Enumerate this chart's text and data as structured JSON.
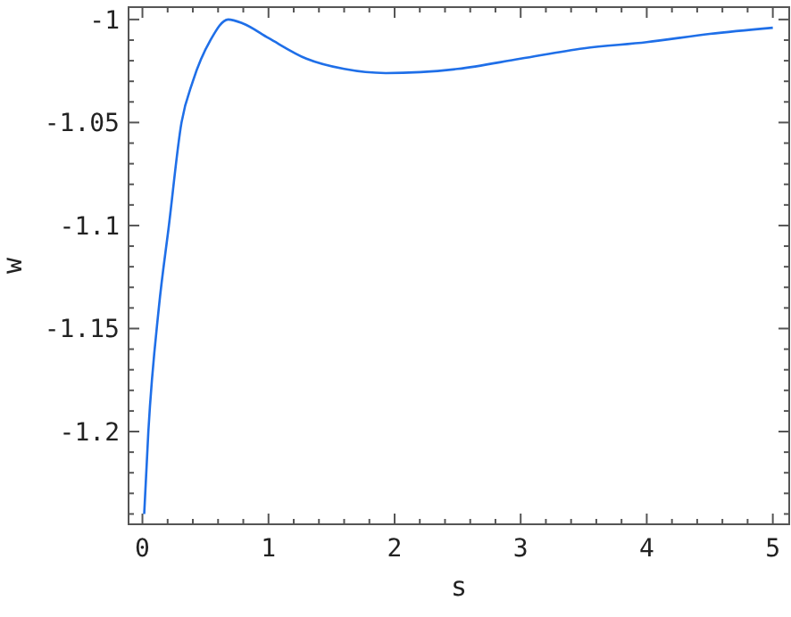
{
  "chart_data": {
    "type": "line",
    "xlabel": "s",
    "ylabel": "w",
    "xlim": [
      -0.11,
      5.13
    ],
    "ylim": [
      -1.245,
      -0.994
    ],
    "xticks": [
      0,
      {
        "value": 0.2,
        "label": null
      },
      {
        "value": 0.4,
        "label": null
      },
      {
        "value": 0.6,
        "label": null
      },
      {
        "value": 0.8,
        "label": null
      },
      1,
      {
        "value": 1.2,
        "label": null
      },
      {
        "value": 1.4,
        "label": null
      },
      {
        "value": 1.6,
        "label": null
      },
      {
        "value": 1.8,
        "label": null
      },
      2,
      {
        "value": 2.2,
        "label": null
      },
      {
        "value": 2.4,
        "label": null
      },
      {
        "value": 2.6,
        "label": null
      },
      {
        "value": 2.8,
        "label": null
      },
      3,
      {
        "value": 3.2,
        "label": null
      },
      {
        "value": 3.4,
        "label": null
      },
      {
        "value": 3.6,
        "label": null
      },
      {
        "value": 3.8,
        "label": null
      },
      4,
      {
        "value": 4.2,
        "label": null
      },
      {
        "value": 4.4,
        "label": null
      },
      {
        "value": 4.6,
        "label": null
      },
      {
        "value": 4.8,
        "label": null
      },
      5
    ],
    "yticks": [
      {
        "value": -1.24,
        "label": null
      },
      {
        "value": -1.23,
        "label": null
      },
      {
        "value": -1.22,
        "label": null
      },
      {
        "value": -1.21,
        "label": null
      },
      -1.2,
      {
        "value": -1.19,
        "label": null
      },
      {
        "value": -1.18,
        "label": null
      },
      {
        "value": -1.17,
        "label": null
      },
      {
        "value": -1.16,
        "label": null
      },
      -1.15,
      {
        "value": -1.14,
        "label": null
      },
      {
        "value": -1.13,
        "label": null
      },
      {
        "value": -1.12,
        "label": null
      },
      {
        "value": -1.11,
        "label": null
      },
      -1.1,
      {
        "value": -1.09,
        "label": null
      },
      {
        "value": -1.08,
        "label": null
      },
      {
        "value": -1.07,
        "label": null
      },
      {
        "value": -1.06,
        "label": null
      },
      -1.05,
      {
        "value": -1.04,
        "label": null
      },
      {
        "value": -1.03,
        "label": null
      },
      {
        "value": -1.02,
        "label": null
      },
      {
        "value": -1.01,
        "label": null
      },
      -1
    ],
    "grid": false,
    "marker": "none",
    "line_style": "solid",
    "series": [
      {
        "color": "#1f6fe8",
        "x": [
          0.014,
          0.047,
          0.13,
          0.21,
          0.31,
          0.4,
          0.54,
          0.68,
          0.8,
          1,
          1.3,
          1.6,
          1.93,
          2.5,
          3,
          3.5,
          4,
          4.5,
          5
        ],
        "values": [
          -1.24,
          -1.2,
          -1.14,
          -1.1,
          -1.05,
          -1.03,
          -1.01,
          -1.0,
          -1.002,
          -1.009,
          -1.019,
          -1.024,
          -1.026,
          -1.024,
          -1.019,
          -1.014,
          -1.011,
          -1.007,
          -1.004
        ]
      }
    ]
  }
}
